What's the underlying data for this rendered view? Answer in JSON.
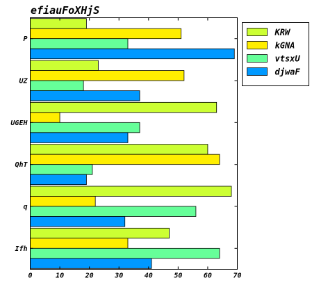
{
  "chart_data": {
    "type": "bar",
    "orientation": "horizontal",
    "title": "efiauFoXHjS",
    "xlabel": "",
    "ylabel": "",
    "xlim": [
      0,
      70
    ],
    "x_ticks": [
      0,
      10,
      20,
      30,
      40,
      50,
      60,
      70
    ],
    "grid": false,
    "legend_position": "top-right",
    "categories": [
      "P",
      "UZ",
      "UGEH",
      "QhT",
      "q",
      "Ifh"
    ],
    "series": [
      {
        "name": "KRW",
        "color": "#ccff33",
        "values": [
          19,
          23,
          63,
          60,
          68,
          47
        ]
      },
      {
        "name": "kGNA",
        "color": "#ffee00",
        "values": [
          51,
          52,
          10,
          64,
          22,
          33
        ]
      },
      {
        "name": "vtsxU",
        "color": "#66ff99",
        "values": [
          33,
          18,
          37,
          21,
          56,
          64
        ]
      },
      {
        "name": "djwaF",
        "color": "#0099ff",
        "values": [
          69,
          37,
          33,
          19,
          32,
          41
        ]
      }
    ]
  }
}
